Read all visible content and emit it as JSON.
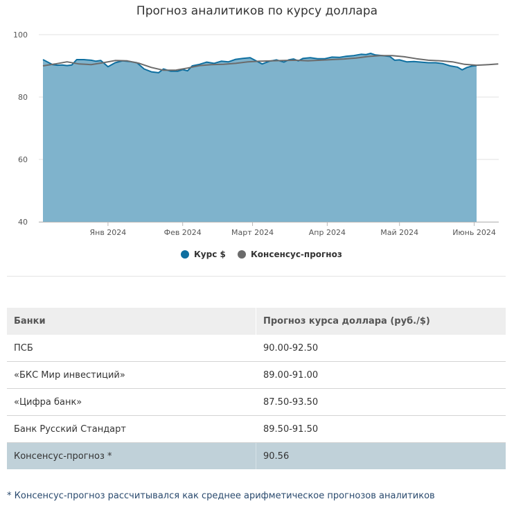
{
  "chart_data": {
    "type": "area",
    "title": "Прогноз аналитиков по курсу доллара",
    "y_ticks": [
      40,
      60,
      80,
      100
    ],
    "ylim": [
      40,
      100
    ],
    "x_tick_labels": [
      {
        "date": "2024-01-01",
        "label": "Янв 2024"
      },
      {
        "date": "2024-02-01",
        "label": "Фев 2024"
      },
      {
        "date": "2024-03-01",
        "label": "Март 2024"
      },
      {
        "date": "2024-04-01",
        "label": "Апр 2024"
      },
      {
        "date": "2024-05-01",
        "label": "Май 2024"
      },
      {
        "date": "2024-06-01",
        "label": "Июнь 2024"
      }
    ],
    "xlim": [
      "2023-12-05",
      "2024-06-02"
    ],
    "grid": true,
    "legend_position": "bottom",
    "series": [
      {
        "name": "Курс $",
        "type": "area",
        "color": "#0e6fa0",
        "fill": "#7fb3cc",
        "points": [
          [
            "2023-12-05",
            92.0
          ],
          [
            "2023-12-07",
            91.2
          ],
          [
            "2023-12-09",
            90.4
          ],
          [
            "2023-12-11",
            90.2
          ],
          [
            "2023-12-13",
            90.3
          ],
          [
            "2023-12-15",
            90.1
          ],
          [
            "2023-12-17",
            90.3
          ],
          [
            "2023-12-19",
            92.0
          ],
          [
            "2023-12-22",
            92.0
          ],
          [
            "2023-12-25",
            91.8
          ],
          [
            "2023-12-27",
            91.5
          ],
          [
            "2023-12-29",
            91.7
          ],
          [
            "2024-01-01",
            89.7
          ],
          [
            "2024-01-04",
            91.0
          ],
          [
            "2024-01-07",
            91.6
          ],
          [
            "2024-01-10",
            91.4
          ],
          [
            "2024-01-13",
            91.0
          ],
          [
            "2024-01-16",
            89.0
          ],
          [
            "2024-01-19",
            88.1
          ],
          [
            "2024-01-22",
            87.8
          ],
          [
            "2024-01-24",
            89.0
          ],
          [
            "2024-01-27",
            88.3
          ],
          [
            "2024-01-30",
            88.3
          ],
          [
            "2024-02-01",
            88.8
          ],
          [
            "2024-02-03",
            88.4
          ],
          [
            "2024-02-05",
            90.0
          ],
          [
            "2024-02-08",
            90.5
          ],
          [
            "2024-02-11",
            91.2
          ],
          [
            "2024-02-14",
            90.8
          ],
          [
            "2024-02-17",
            91.5
          ],
          [
            "2024-02-20",
            91.3
          ],
          [
            "2024-02-23",
            92.1
          ],
          [
            "2024-02-26",
            92.4
          ],
          [
            "2024-02-29",
            92.6
          ],
          [
            "2024-03-02",
            91.8
          ],
          [
            "2024-03-05",
            90.6
          ],
          [
            "2024-03-08",
            91.5
          ],
          [
            "2024-03-11",
            91.9
          ],
          [
            "2024-03-14",
            91.2
          ],
          [
            "2024-03-16",
            91.9
          ],
          [
            "2024-03-18",
            92.2
          ],
          [
            "2024-03-20",
            91.6
          ],
          [
            "2024-03-22",
            92.4
          ],
          [
            "2024-03-25",
            92.6
          ],
          [
            "2024-03-28",
            92.3
          ],
          [
            "2024-03-31",
            92.3
          ],
          [
            "2024-04-03",
            92.8
          ],
          [
            "2024-04-06",
            92.7
          ],
          [
            "2024-04-09",
            93.1
          ],
          [
            "2024-04-12",
            93.3
          ],
          [
            "2024-04-15",
            93.7
          ],
          [
            "2024-04-17",
            93.6
          ],
          [
            "2024-04-19",
            94.0
          ],
          [
            "2024-04-21",
            93.5
          ],
          [
            "2024-04-24",
            93.3
          ],
          [
            "2024-04-27",
            93.0
          ],
          [
            "2024-04-29",
            91.8
          ],
          [
            "2024-05-01",
            91.9
          ],
          [
            "2024-05-04",
            91.3
          ],
          [
            "2024-05-07",
            91.4
          ],
          [
            "2024-05-10",
            91.2
          ],
          [
            "2024-05-13",
            91.0
          ],
          [
            "2024-05-16",
            91.0
          ],
          [
            "2024-05-19",
            90.7
          ],
          [
            "2024-05-22",
            90.0
          ],
          [
            "2024-05-25",
            89.6
          ],
          [
            "2024-05-27",
            88.7
          ],
          [
            "2024-05-29",
            89.5
          ],
          [
            "2024-05-31",
            89.9
          ],
          [
            "2024-06-02",
            90.1
          ]
        ]
      },
      {
        "name": "Консенсус-прогноз",
        "type": "line",
        "color": "#6b6b6b",
        "points": [
          [
            "2023-12-05",
            90.0
          ],
          [
            "2023-12-10",
            90.6
          ],
          [
            "2023-12-15",
            91.3
          ],
          [
            "2023-12-20",
            90.6
          ],
          [
            "2023-12-25",
            90.4
          ],
          [
            "2023-12-30",
            91.0
          ],
          [
            "2024-01-04",
            91.7
          ],
          [
            "2024-01-09",
            91.6
          ],
          [
            "2024-01-14",
            90.8
          ],
          [
            "2024-01-19",
            89.5
          ],
          [
            "2024-01-24",
            88.6
          ],
          [
            "2024-01-29",
            88.6
          ],
          [
            "2024-02-03",
            89.3
          ],
          [
            "2024-02-08",
            90.1
          ],
          [
            "2024-02-13",
            90.4
          ],
          [
            "2024-02-18",
            90.5
          ],
          [
            "2024-02-23",
            90.8
          ],
          [
            "2024-02-28",
            91.3
          ],
          [
            "2024-03-04",
            91.5
          ],
          [
            "2024-03-09",
            91.6
          ],
          [
            "2024-03-14",
            91.7
          ],
          [
            "2024-03-19",
            91.8
          ],
          [
            "2024-03-24",
            91.6
          ],
          [
            "2024-03-29",
            91.8
          ],
          [
            "2024-04-03",
            92.0
          ],
          [
            "2024-04-08",
            92.2
          ],
          [
            "2024-04-13",
            92.5
          ],
          [
            "2024-04-18",
            93.0
          ],
          [
            "2024-04-23",
            93.3
          ],
          [
            "2024-04-28",
            93.3
          ],
          [
            "2024-05-03",
            92.9
          ],
          [
            "2024-05-08",
            92.3
          ],
          [
            "2024-05-13",
            91.8
          ],
          [
            "2024-05-18",
            91.6
          ],
          [
            "2024-05-23",
            91.3
          ],
          [
            "2024-05-28",
            90.5
          ],
          [
            "2024-06-02",
            90.2
          ],
          [
            "2024-06-07",
            90.4
          ],
          [
            "2024-06-11",
            90.6
          ]
        ]
      }
    ]
  },
  "table": {
    "headers": [
      "Банки",
      "Прогноз курса доллара (руб./$)"
    ],
    "rows": [
      [
        "ПСБ",
        "90.00-92.50"
      ],
      [
        "«БКС Мир инвестиций»",
        "89.00-91.00"
      ],
      [
        "«Цифра банк»",
        "87.50-93.50"
      ],
      [
        "Банк Русский Стандарт",
        "89.50-91.50"
      ]
    ],
    "consensus_row": [
      "Консенсус-прогноз *",
      "90.56"
    ]
  },
  "footnote": "* Консенсус-прогноз рассчитывался как среднее арифметическое прогнозов аналитиков"
}
